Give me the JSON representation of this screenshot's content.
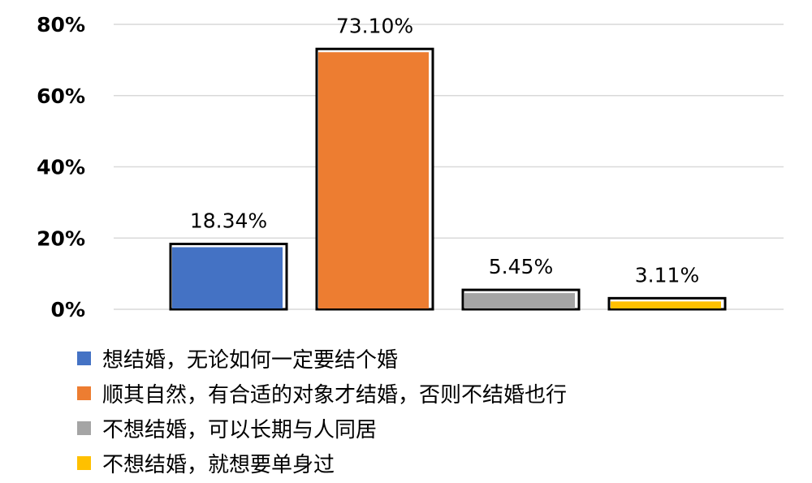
{
  "chart_data": {
    "type": "bar",
    "categories": [
      "想结婚，无论如何一定要结个婚",
      "顺其自然，有合适的对象才结婚，否则不结婚也行",
      "不想结婚，可以长期与人同居",
      "不想结婚，就想要单身过"
    ],
    "values": [
      18.34,
      73.1,
      5.45,
      3.11
    ],
    "data_labels": [
      "18.34%",
      "73.10%",
      "5.45%",
      "3.11%"
    ],
    "colors": [
      "#4472C4",
      "#ED7D31",
      "#A5A5A5",
      "#FFC000"
    ],
    "ylim": [
      0,
      80
    ],
    "yticks": [
      0,
      20,
      40,
      60,
      80
    ],
    "ytick_labels": [
      "0%",
      "20%",
      "40%",
      "60%",
      "80%"
    ],
    "grid": true,
    "legend_position": "bottom",
    "title": "",
    "xlabel": "",
    "ylabel": ""
  }
}
